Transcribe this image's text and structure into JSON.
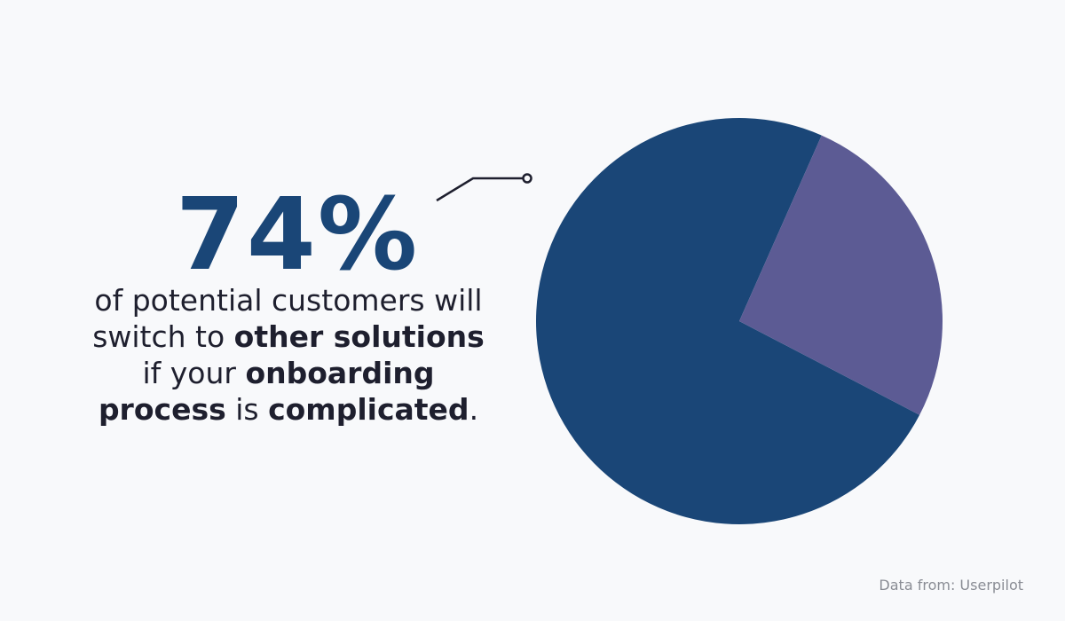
{
  "chart_data": {
    "type": "pie",
    "values": [
      74,
      26
    ],
    "value_labels": [
      "74%",
      null
    ],
    "colors": [
      "#1a4677",
      "#5c5b94"
    ],
    "caption_lines": [
      [
        {
          "text": "of potential customers will",
          "bold": false
        }
      ],
      [
        {
          "text": "switch to ",
          "bold": false
        },
        {
          "text": "other solutions",
          "bold": true
        }
      ],
      [
        {
          "text": "if your ",
          "bold": false
        },
        {
          "text": "onboarding",
          "bold": true
        }
      ],
      [
        {
          "text": "process",
          "bold": true
        },
        {
          "text": " is ",
          "bold": false
        },
        {
          "text": "complicated",
          "bold": true
        },
        {
          "text": ".",
          "bold": false
        }
      ]
    ],
    "source": "Data from: Userpilot"
  }
}
